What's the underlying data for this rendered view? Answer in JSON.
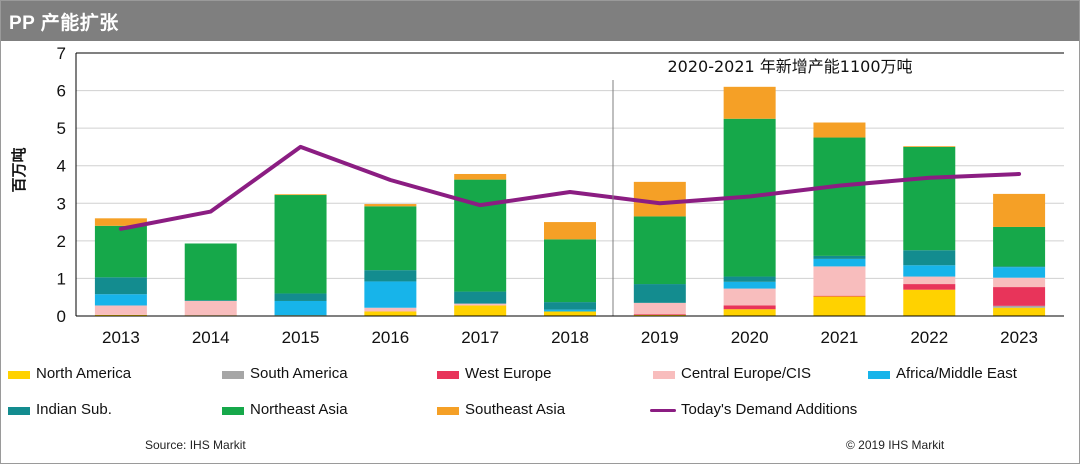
{
  "header": {
    "title": "PP 产能扩张"
  },
  "chart_data": {
    "type": "bar",
    "stacked": true,
    "title": "",
    "annotation": "2020-2021 年新增产能1100万吨",
    "xlabel": "",
    "ylabel": "百万吨",
    "ylim": [
      0,
      7
    ],
    "yticks": [
      "0",
      "1",
      "2",
      "3",
      "4",
      "5",
      "6",
      "7"
    ],
    "categories": [
      "2013",
      "2014",
      "2015",
      "2016",
      "2017",
      "2018",
      "2019",
      "2020",
      "2021",
      "2022",
      "2023"
    ],
    "grid": true,
    "legend_position": "bottom",
    "series": [
      {
        "name": "North America",
        "color": "#FFD200",
        "values": [
          0.03,
          0.02,
          0.02,
          0.12,
          0.28,
          0.12,
          0.03,
          0.18,
          0.52,
          0.7,
          0.22
        ]
      },
      {
        "name": "South America",
        "color": "#A6A6A6",
        "values": [
          0,
          0,
          0,
          0,
          0,
          0,
          0,
          0,
          0,
          0,
          0.05
        ]
      },
      {
        "name": "West Europe",
        "color": "#E8345A",
        "values": [
          0,
          0,
          0,
          0,
          0,
          0,
          0.02,
          0.1,
          0.02,
          0.15,
          0.5
        ]
      },
      {
        "name": "Central Europe/CIS",
        "color": "#F8BDBD",
        "values": [
          0.25,
          0.38,
          0,
          0.1,
          0.05,
          0,
          0.3,
          0.45,
          0.78,
          0.2,
          0.25
        ]
      },
      {
        "name": "Africa/Middle East",
        "color": "#17B4EA",
        "values": [
          0.3,
          0,
          0.38,
          0.7,
          0,
          0.05,
          0,
          0.18,
          0.2,
          0.3,
          0.28
        ]
      },
      {
        "name": "Indian Sub.",
        "color": "#138C8F",
        "values": [
          0.45,
          0.02,
          0.2,
          0.3,
          0.32,
          0.2,
          0.5,
          0.14,
          0.08,
          0.4,
          0.02
        ]
      },
      {
        "name": "Northeast Asia",
        "color": "#16A84A",
        "values": [
          1.37,
          1.51,
          2.62,
          1.7,
          2.98,
          1.67,
          1.8,
          4.2,
          3.15,
          2.75,
          1.05
        ]
      },
      {
        "name": "Southeast Asia",
        "color": "#F5A026",
        "values": [
          0.2,
          0,
          0.02,
          0.06,
          0.15,
          0.46,
          0.92,
          0.85,
          0.4,
          0.02,
          0.88
        ]
      }
    ],
    "line_series": {
      "name": "Today's Demand Additions",
      "color": "#8B1D82",
      "values": [
        2.32,
        2.78,
        4.5,
        3.62,
        2.95,
        3.3,
        3.0,
        3.18,
        3.47,
        3.68,
        3.78
      ]
    }
  },
  "legend": {
    "items": [
      {
        "label": "North America",
        "color": "#FFD200"
      },
      {
        "label": "South America",
        "color": "#A6A6A6"
      },
      {
        "label": "West Europe",
        "color": "#E8345A"
      },
      {
        "label": "Central Europe/CIS",
        "color": "#F8BDBD"
      },
      {
        "label": "Africa/Middle East",
        "color": "#17B4EA"
      },
      {
        "label": "Indian Sub.",
        "color": "#138C8F"
      },
      {
        "label": "Northeast Asia",
        "color": "#16A84A"
      },
      {
        "label": "Southeast Asia",
        "color": "#F5A026"
      },
      {
        "label": "Today's Demand Additions",
        "color": "#8B1D82"
      }
    ]
  },
  "footer": {
    "source": "Source: IHS Markit",
    "copyright": "© 2019 IHS Markit"
  }
}
